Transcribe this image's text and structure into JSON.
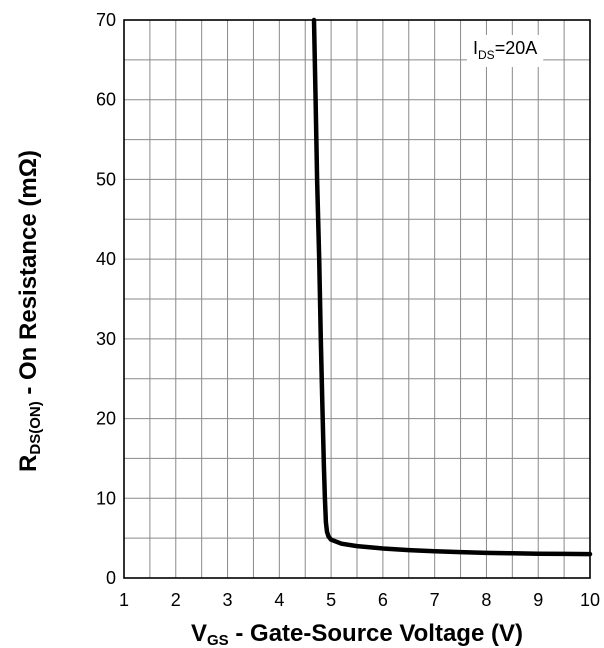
{
  "chart_data": {
    "type": "line",
    "x_label": {
      "main": "V",
      "sub": "GS",
      "rest": " - Gate-Source Voltage (V)"
    },
    "y_label": {
      "main": "R",
      "sub": "DS(ON)",
      "rest": " - On Resistance (mΩ)"
    },
    "xlim": [
      1,
      10
    ],
    "ylim": [
      0,
      70
    ],
    "x_ticks": [
      1,
      2,
      3,
      4,
      5,
      6,
      7,
      8,
      9,
      10
    ],
    "y_ticks": [
      0,
      10,
      20,
      30,
      40,
      50,
      60,
      70
    ],
    "grid": true,
    "annotation": {
      "main": "I",
      "sub": "DS",
      "rest": "=20A",
      "position": "top-right"
    },
    "series": [
      {
        "x": [
          4.67,
          4.7,
          4.73,
          4.77,
          4.8,
          4.83,
          4.86,
          4.88,
          4.9,
          4.92,
          4.95,
          5.0,
          5.2,
          5.5,
          6.0,
          6.5,
          7.0,
          7.5,
          8.0,
          8.5,
          9.0,
          9.5,
          10.0
        ],
        "y": [
          70,
          60,
          50,
          40,
          30,
          22,
          14,
          10,
          7,
          5.8,
          5.2,
          4.8,
          4.3,
          4.0,
          3.7,
          3.5,
          3.35,
          3.25,
          3.15,
          3.1,
          3.05,
          3.02,
          3.0
        ],
        "color": "#000000"
      }
    ]
  }
}
